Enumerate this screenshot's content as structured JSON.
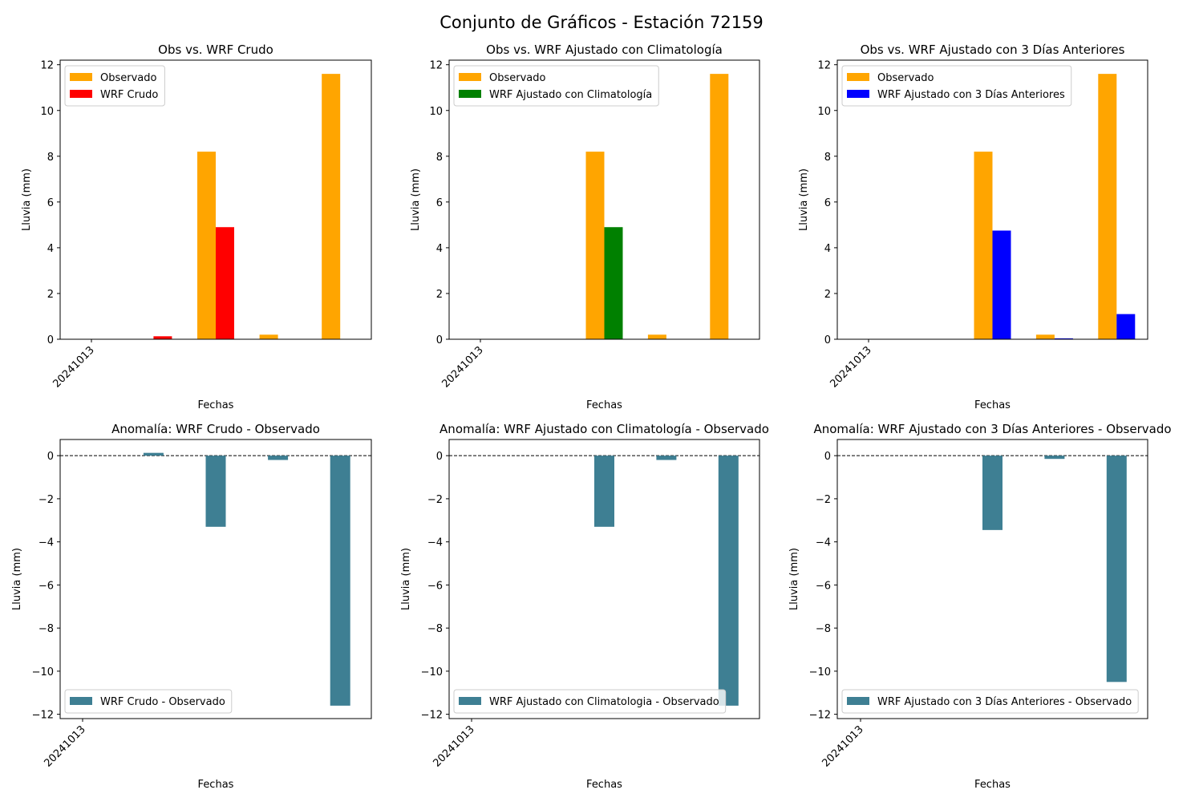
{
  "suptitle": "Conjunto de Gráficos - Estación 72159",
  "colors": {
    "observado": "#ffa500",
    "wrf_crudo": "#ff0000",
    "wrf_clima": "#008000",
    "wrf_3dias": "#0000ff",
    "anomalia": "#3e7f93"
  },
  "chart_data": [
    {
      "type": "bar",
      "title": "Obs vs. WRF Crudo",
      "xlabel": "Fechas",
      "ylabel": "Lluvia (mm)",
      "x_tick_labels": [
        "20241013"
      ],
      "ylim": [
        0,
        12.2
      ],
      "yticks": [
        0,
        2,
        4,
        6,
        8,
        10,
        12
      ],
      "legend_location": "upper-left",
      "series": [
        {
          "name": "Observado",
          "color_key": "observado",
          "values": [
            0,
            0,
            8.2,
            0.2,
            11.6
          ]
        },
        {
          "name": "WRF Crudo",
          "color_key": "wrf_crudo",
          "values": [
            0,
            0.13,
            4.9,
            0,
            0
          ]
        }
      ]
    },
    {
      "type": "bar",
      "title": "Obs vs. WRF Ajustado con Climatología",
      "xlabel": "Fechas",
      "ylabel": "Lluvia (mm)",
      "x_tick_labels": [
        "20241013"
      ],
      "ylim": [
        0,
        12.2
      ],
      "yticks": [
        0,
        2,
        4,
        6,
        8,
        10,
        12
      ],
      "legend_location": "upper-left",
      "series": [
        {
          "name": "Observado",
          "color_key": "observado",
          "values": [
            0,
            0,
            8.2,
            0.2,
            11.6
          ]
        },
        {
          "name": "WRF Ajustado con Climatología",
          "color_key": "wrf_clima",
          "values": [
            0,
            0,
            4.9,
            0,
            0
          ]
        }
      ]
    },
    {
      "type": "bar",
      "title": "Obs vs. WRF Ajustado con 3 Días Anteriores",
      "xlabel": "Fechas",
      "ylabel": "Lluvia (mm)",
      "x_tick_labels": [
        "20241013"
      ],
      "ylim": [
        0,
        12.2
      ],
      "yticks": [
        0,
        2,
        4,
        6,
        8,
        10,
        12
      ],
      "legend_location": "upper-left",
      "series": [
        {
          "name": "Observado",
          "color_key": "observado",
          "values": [
            0,
            0,
            8.2,
            0.2,
            11.6
          ]
        },
        {
          "name": "WRF Ajustado con 3 Días Anteriores",
          "color_key": "wrf_3dias",
          "values": [
            0,
            0,
            4.75,
            0.04,
            1.1
          ]
        }
      ]
    },
    {
      "type": "bar",
      "title": "Anomalía: WRF Crudo - Observado",
      "xlabel": "Fechas",
      "ylabel": "Lluvia (mm)",
      "x_tick_labels": [
        "20241013"
      ],
      "ylim": [
        -12.2,
        0.75
      ],
      "yticks": [
        0,
        -2,
        -4,
        -6,
        -8,
        -10,
        -12
      ],
      "zero_line": "dashed",
      "legend_location": "lower-left",
      "series": [
        {
          "name": "WRF Crudo - Observado",
          "color_key": "anomalia",
          "values": [
            0,
            0.13,
            -3.3,
            -0.2,
            -11.6
          ]
        }
      ]
    },
    {
      "type": "bar",
      "title": "Anomalía: WRF Ajustado con Climatología - Observado",
      "xlabel": "Fechas",
      "ylabel": "Lluvia (mm)",
      "x_tick_labels": [
        "20241013"
      ],
      "ylim": [
        -12.2,
        0.75
      ],
      "yticks": [
        0,
        -2,
        -4,
        -6,
        -8,
        -10,
        -12
      ],
      "zero_line": "dashed",
      "legend_location": "lower-left",
      "series": [
        {
          "name": "WRF Ajustado con Climatologia - Observado",
          "color_key": "anomalia",
          "values": [
            0,
            0,
            -3.3,
            -0.2,
            -11.6
          ]
        }
      ]
    },
    {
      "type": "bar",
      "title": "Anomalía: WRF Ajustado con 3 Días Anteriores - Observado",
      "xlabel": "Fechas",
      "ylabel": "Lluvia (mm)",
      "x_tick_labels": [
        "20241013"
      ],
      "ylim": [
        -12.2,
        0.75
      ],
      "yticks": [
        0,
        -2,
        -4,
        -6,
        -8,
        -10,
        -12
      ],
      "zero_line": "dashed",
      "legend_location": "lower-left",
      "series": [
        {
          "name": "WRF Ajustado con 3 Días Anteriores - Observado",
          "color_key": "anomalia",
          "values": [
            0,
            0,
            -3.45,
            -0.15,
            -10.5
          ]
        }
      ]
    }
  ]
}
